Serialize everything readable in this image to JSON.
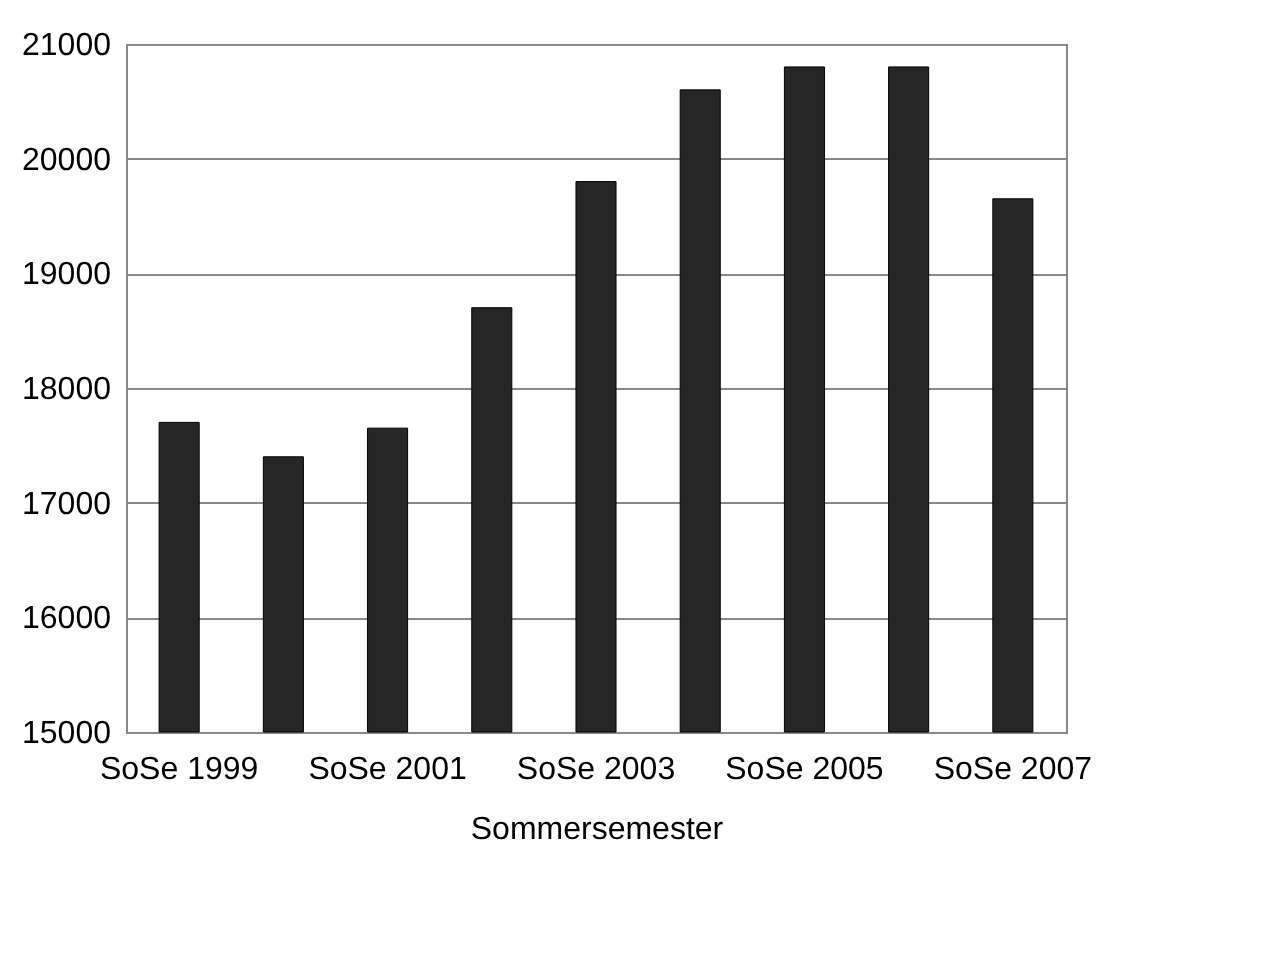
{
  "chart_data": {
    "type": "bar",
    "xlabel": "Sommersemester",
    "categories": [
      "SoSe 1999",
      null,
      "SoSe 2001",
      null,
      "SoSe 2003",
      null,
      "SoSe 2005",
      null,
      "SoSe 2007"
    ],
    "values": [
      17700,
      17400,
      17650,
      18700,
      19800,
      20600,
      20800,
      20800,
      19650
    ],
    "color": "#262626",
    "ylim": [
      15000,
      21000
    ],
    "yticks": [
      15000,
      16000,
      17000,
      18000,
      19000,
      20000,
      21000
    ],
    "grid": "y"
  }
}
